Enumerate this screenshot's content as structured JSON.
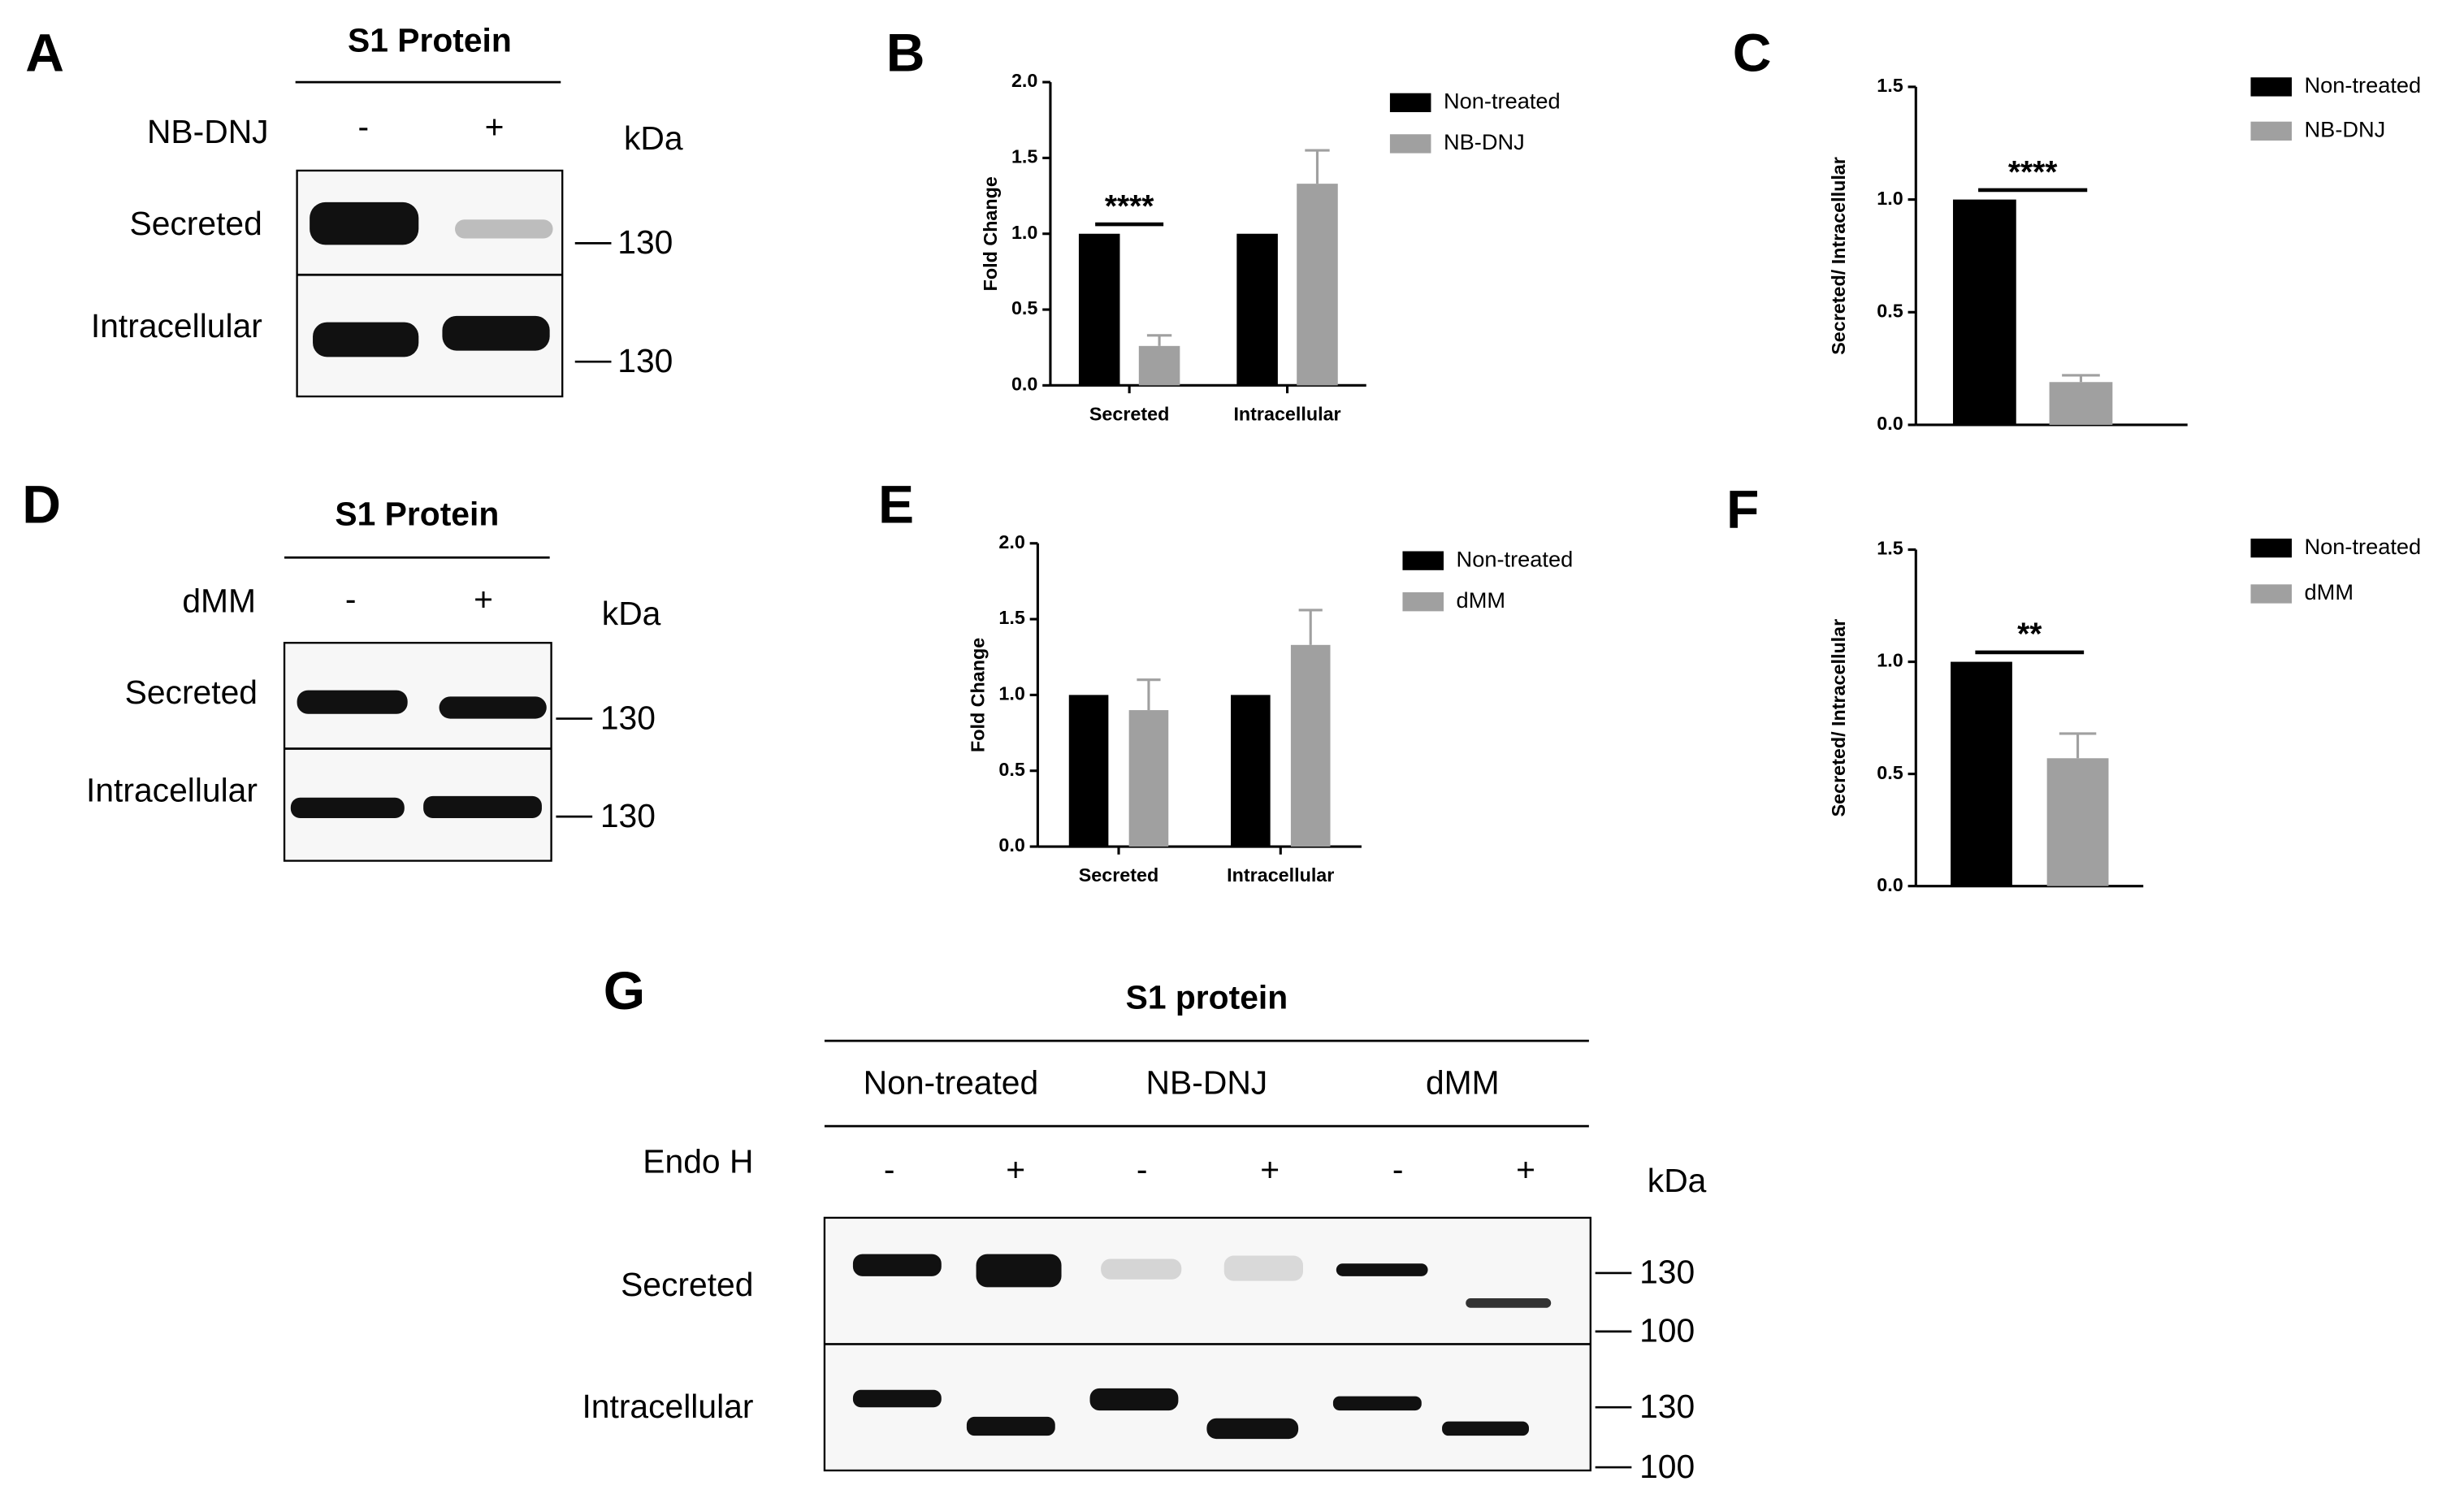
{
  "panel_labels": [
    "A",
    "B",
    "C",
    "D",
    "E",
    "F",
    "G"
  ],
  "blots": [
    {
      "title": "S1 Protein",
      "treatment": "NB-DNJ",
      "lanes": [
        "-",
        "+"
      ],
      "kda": "kDa",
      "rows": [
        "Secreted",
        "Intracellular"
      ],
      "markers": [
        "130",
        "130"
      ]
    },
    {
      "title": "S1 Protein",
      "treatment": "dMM",
      "lanes": [
        "-",
        "+"
      ],
      "kda": "kDa",
      "rows": [
        "Secreted",
        "Intracellular"
      ],
      "markers": [
        "130",
        "130"
      ]
    },
    {
      "title": "S1 protein",
      "groups": [
        "Non-treated",
        "NB-DNJ",
        "dMM"
      ],
      "treatment": "Endo H",
      "lanes": [
        "-",
        "+",
        "-",
        "+",
        "-",
        "+"
      ],
      "kda": "kDa",
      "rows": [
        "Secreted",
        "Intracellular"
      ],
      "markers": [
        "130",
        "100",
        "130",
        "100"
      ]
    }
  ],
  "chart_data": [
    {
      "type": "bar",
      "ylabel": "Fold Change",
      "categories": [
        "Secreted",
        "Intracellular"
      ],
      "series": [
        {
          "name": "Non-treated",
          "color": "#000000",
          "values": [
            1.0,
            1.0
          ]
        },
        {
          "name": "NB-DNJ",
          "color": "#a0a0a0",
          "values": [
            0.26,
            1.33
          ],
          "errors": [
            0.07,
            0.22
          ]
        }
      ],
      "ylim": [
        0,
        2
      ],
      "yticks": [
        {
          "value": 0,
          "label": "0.0"
        },
        0.5,
        {
          "value": 1,
          "label": "1.0"
        },
        1.5,
        {
          "value": 2,
          "label": "2.0"
        }
      ],
      "annotation": "****"
    },
    {
      "type": "bar",
      "ylabel": "Secreted/ Intracellular",
      "categories": [
        null
      ],
      "series": [
        {
          "name": "Non-treated",
          "color": "#000000",
          "values": [
            1.0
          ]
        },
        {
          "name": "NB-DNJ",
          "color": "#a0a0a0",
          "values": [
            0.19
          ],
          "errors": [
            0.03
          ]
        }
      ],
      "ylim": [
        0,
        1.5
      ],
      "yticks": [
        {
          "value": 0,
          "label": "0.0"
        },
        0.5,
        {
          "value": 1,
          "label": "1.0"
        },
        1.5
      ],
      "annotation": "****"
    },
    {
      "type": "bar",
      "ylabel": "Fold Change",
      "categories": [
        "Secreted",
        "Intracellular"
      ],
      "series": [
        {
          "name": "Non-treated",
          "color": "#000000",
          "values": [
            1.0,
            1.0
          ]
        },
        {
          "name": "dMM",
          "color": "#a0a0a0",
          "values": [
            0.9,
            1.33
          ],
          "errors": [
            0.2,
            0.23
          ]
        }
      ],
      "ylim": [
        0,
        2
      ],
      "yticks": [
        {
          "value": 0,
          "label": "0.0"
        },
        0.5,
        {
          "value": 1,
          "label": "1.0"
        },
        1.5,
        {
          "value": 2,
          "label": "2.0"
        }
      ]
    },
    {
      "type": "bar",
      "ylabel": "Secreted/ Intracellular",
      "categories": [
        null
      ],
      "series": [
        {
          "name": "Non-treated",
          "color": "#000000",
          "values": [
            1.0
          ]
        },
        {
          "name": "dMM",
          "color": "#a0a0a0",
          "values": [
            0.57
          ],
          "errors": [
            0.11
          ]
        }
      ],
      "ylim": [
        0,
        1.5
      ],
      "yticks": [
        {
          "value": 0,
          "label": "0.0"
        },
        0.5,
        {
          "value": 1,
          "label": "1.0"
        },
        1.5
      ],
      "annotation": "**"
    }
  ]
}
